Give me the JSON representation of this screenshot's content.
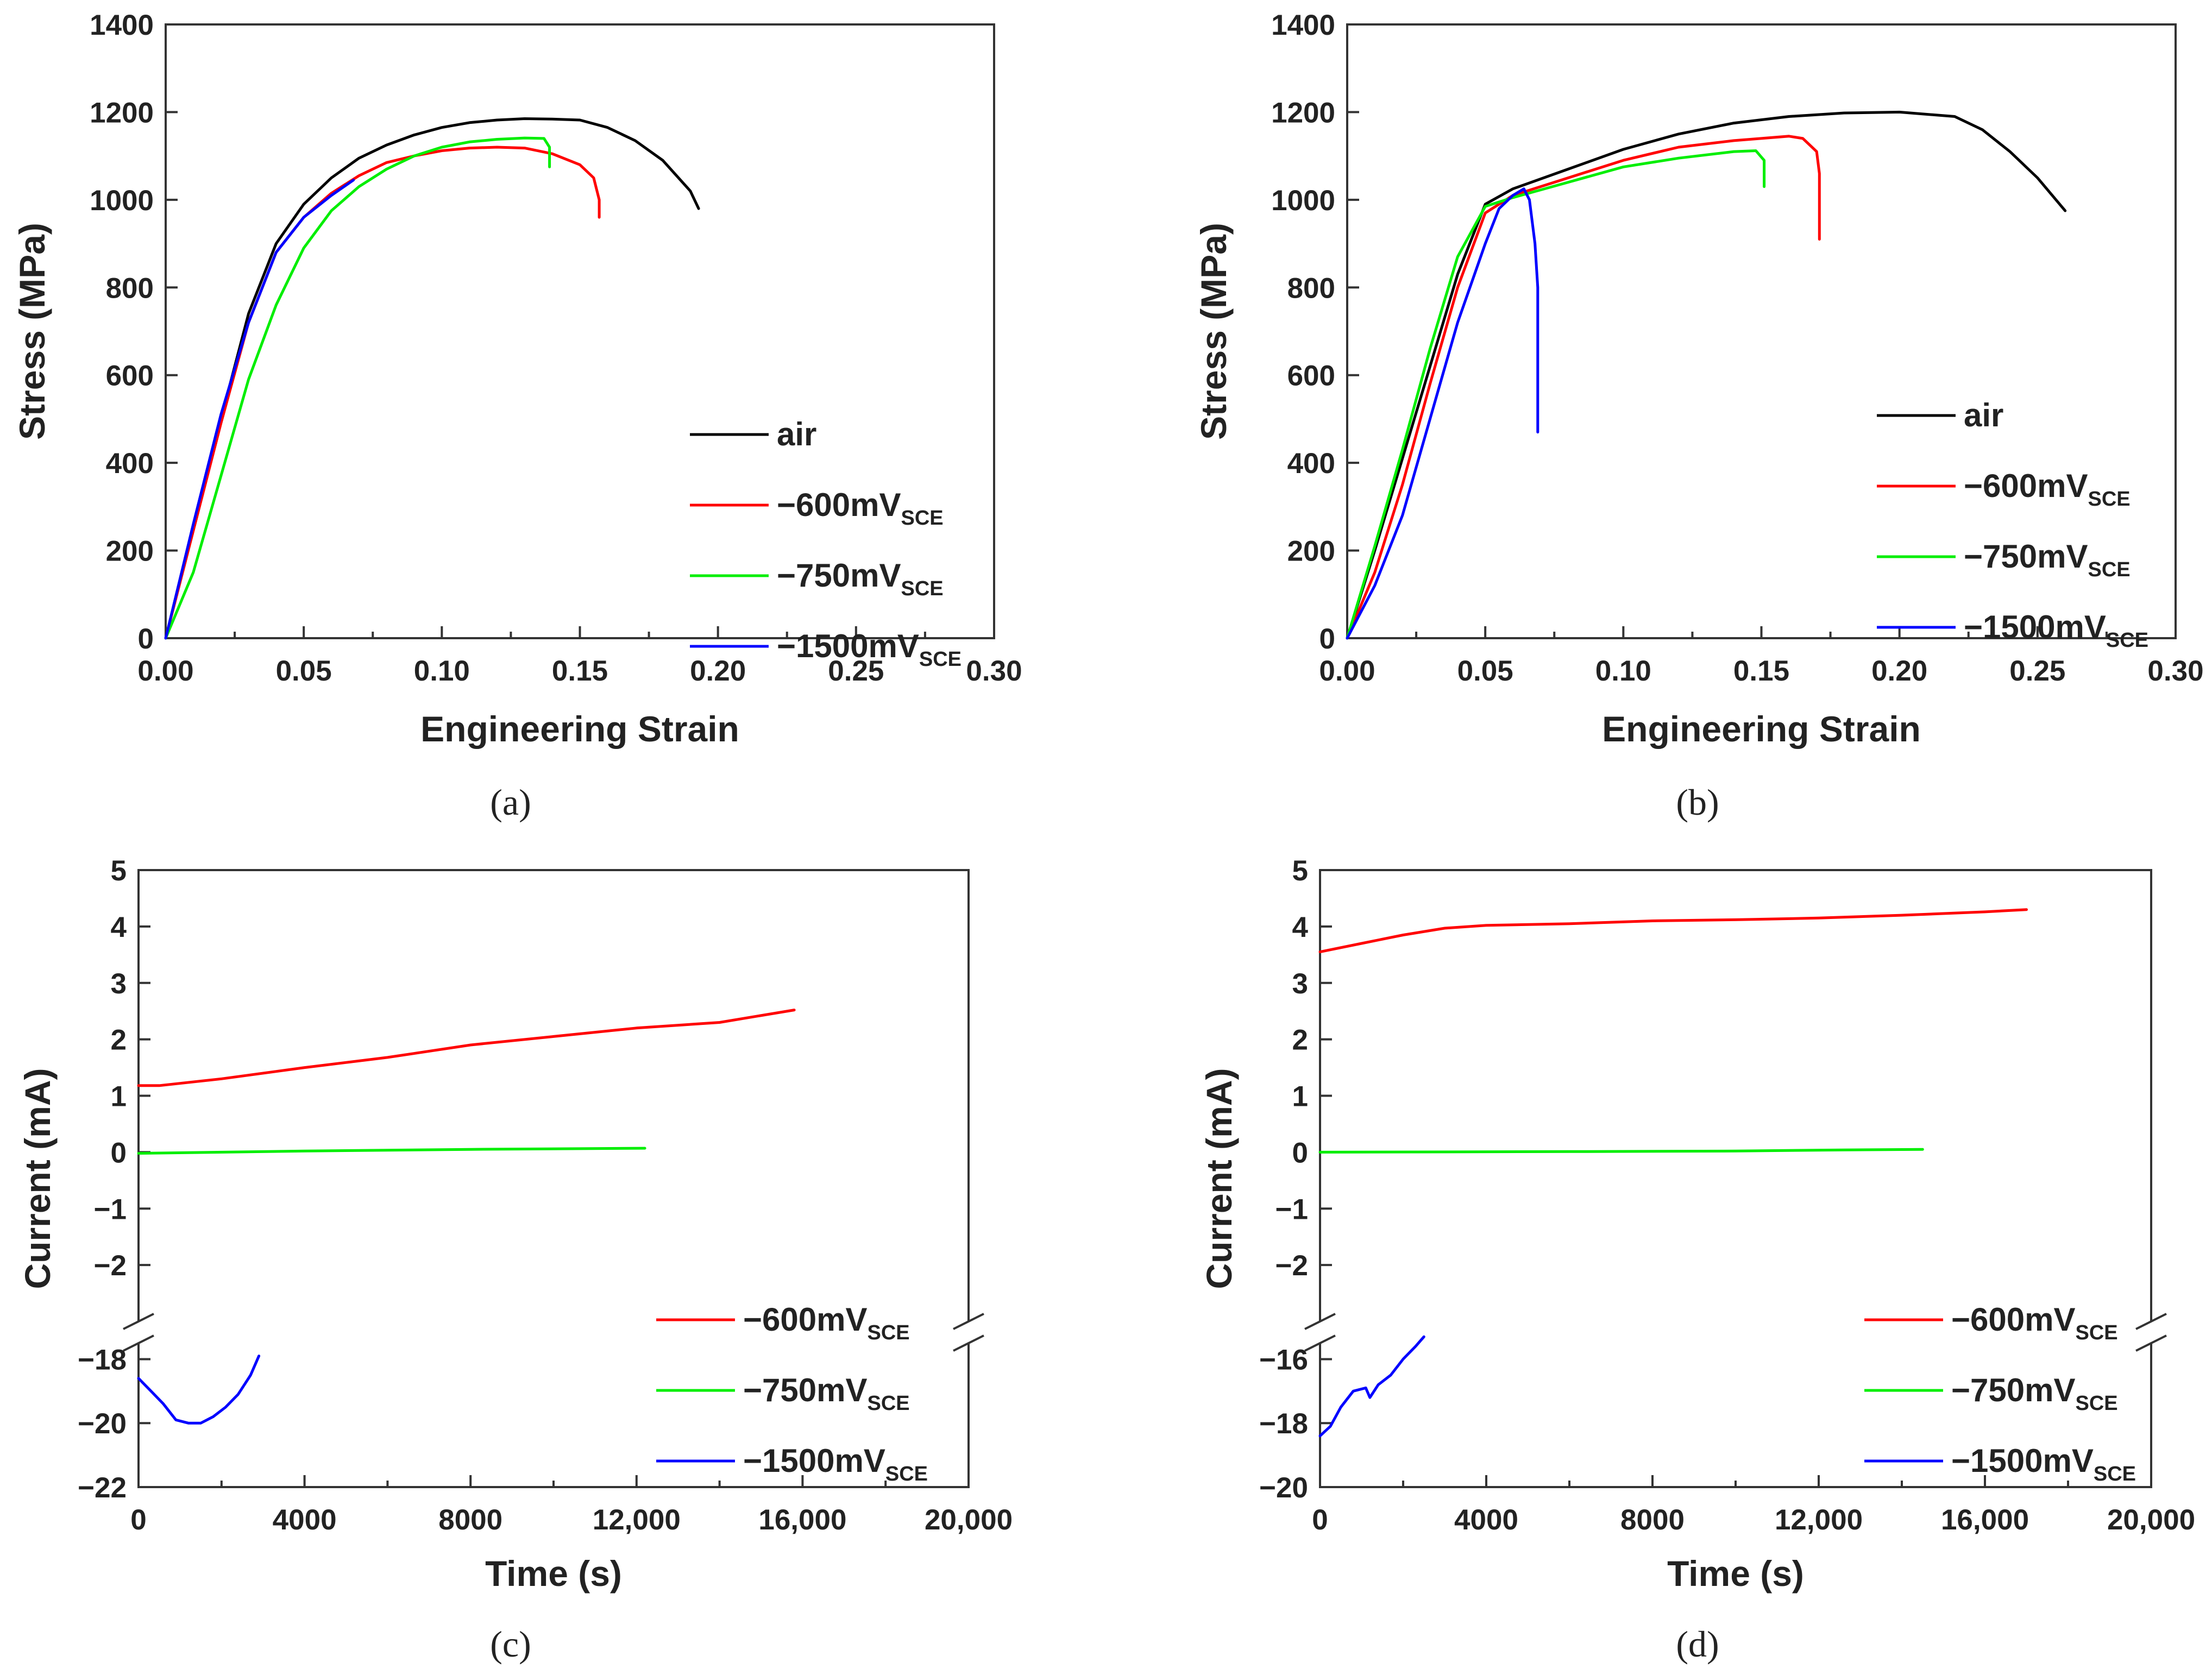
{
  "chart_data": [
    {
      "id": "a",
      "type": "line",
      "panel_label": "(a)",
      "xlabel": "Engineering Strain",
      "ylabel": "Stress (MPa)",
      "xlim": [
        0,
        0.3
      ],
      "ylim": [
        0,
        1400
      ],
      "x_ticks": [
        0.0,
        0.05,
        0.1,
        0.15,
        0.2,
        0.25,
        0.3
      ],
      "x_tick_labels": [
        "0.00",
        "0.05",
        "0.10",
        "0.15",
        "0.20",
        "0.25",
        "0.30"
      ],
      "y_ticks": [
        0,
        200,
        400,
        600,
        800,
        1000,
        1200,
        1400
      ],
      "y_tick_labels": [
        "0",
        "200",
        "400",
        "600",
        "800",
        "1000",
        "1200",
        "1400"
      ],
      "legend": {
        "position": "lower-right",
        "entries": [
          {
            "main": "air",
            "sub": ""
          },
          {
            "main": "−600mV",
            "sub": "SCE"
          },
          {
            "main": "−750mV",
            "sub": "SCE"
          },
          {
            "main": "−1500mV",
            "sub": "SCE"
          }
        ]
      },
      "series": [
        {
          "name": "air",
          "color": "#000000",
          "points": [
            [
              0,
              0
            ],
            [
              0.01,
              250
            ],
            [
              0.02,
              500
            ],
            [
              0.03,
              740
            ],
            [
              0.04,
              900
            ],
            [
              0.05,
              990
            ],
            [
              0.06,
              1050
            ],
            [
              0.07,
              1095
            ],
            [
              0.08,
              1125
            ],
            [
              0.09,
              1148
            ],
            [
              0.1,
              1165
            ],
            [
              0.11,
              1176
            ],
            [
              0.12,
              1182
            ],
            [
              0.13,
              1185
            ],
            [
              0.14,
              1184
            ],
            [
              0.15,
              1182
            ],
            [
              0.16,
              1165
            ],
            [
              0.17,
              1135
            ],
            [
              0.18,
              1090
            ],
            [
              0.19,
              1020
            ],
            [
              0.193,
              980
            ]
          ]
        },
        {
          "name": "−600mV SCE",
          "color": "#ff0000",
          "points": [
            [
              0,
              0
            ],
            [
              0.01,
              245
            ],
            [
              0.02,
              490
            ],
            [
              0.03,
              720
            ],
            [
              0.04,
              880
            ],
            [
              0.05,
              960
            ],
            [
              0.06,
              1015
            ],
            [
              0.07,
              1055
            ],
            [
              0.08,
              1085
            ],
            [
              0.09,
              1100
            ],
            [
              0.1,
              1112
            ],
            [
              0.11,
              1118
            ],
            [
              0.12,
              1120
            ],
            [
              0.13,
              1118
            ],
            [
              0.14,
              1105
            ],
            [
              0.15,
              1080
            ],
            [
              0.155,
              1050
            ],
            [
              0.157,
              1000
            ],
            [
              0.157,
              960
            ]
          ]
        },
        {
          "name": "−750mV SCE",
          "color": "#00ee00",
          "points": [
            [
              0,
              0
            ],
            [
              0.01,
              150
            ],
            [
              0.02,
              370
            ],
            [
              0.03,
              590
            ],
            [
              0.04,
              760
            ],
            [
              0.05,
              890
            ],
            [
              0.06,
              975
            ],
            [
              0.07,
              1030
            ],
            [
              0.08,
              1070
            ],
            [
              0.09,
              1100
            ],
            [
              0.1,
              1120
            ],
            [
              0.11,
              1132
            ],
            [
              0.12,
              1138
            ],
            [
              0.13,
              1141
            ],
            [
              0.137,
              1140
            ],
            [
              0.139,
              1120
            ],
            [
              0.139,
              1075
            ]
          ]
        },
        {
          "name": "−1500mV SCE",
          "color": "#0000ff",
          "points": [
            [
              0,
              0
            ],
            [
              0.01,
              260
            ],
            [
              0.02,
              510
            ],
            [
              0.03,
              720
            ],
            [
              0.04,
              880
            ],
            [
              0.05,
              960
            ],
            [
              0.06,
              1010
            ],
            [
              0.068,
              1045
            ]
          ]
        }
      ]
    },
    {
      "id": "b",
      "type": "line",
      "panel_label": "(b)",
      "xlabel": "Engineering Strain",
      "ylabel": "Stress (MPa)",
      "xlim": [
        0,
        0.3
      ],
      "ylim": [
        0,
        1400
      ],
      "x_ticks": [
        0.0,
        0.05,
        0.1,
        0.15,
        0.2,
        0.25,
        0.3
      ],
      "x_tick_labels": [
        "0.00",
        "0.05",
        "0.10",
        "0.15",
        "0.20",
        "0.25",
        "0.30"
      ],
      "y_ticks": [
        0,
        200,
        400,
        600,
        800,
        1000,
        1200,
        1400
      ],
      "y_tick_labels": [
        "0",
        "200",
        "400",
        "600",
        "800",
        "1000",
        "1200",
        "1400"
      ],
      "legend": {
        "position": "lower-right",
        "entries": [
          {
            "main": "air",
            "sub": ""
          },
          {
            "main": "−600mV",
            "sub": "SCE"
          },
          {
            "main": "−750mV",
            "sub": "SCE"
          },
          {
            "main": "−1500mV",
            "sub": "SCE"
          }
        ]
      },
      "series": [
        {
          "name": "air",
          "color": "#000000",
          "points": [
            [
              0,
              0
            ],
            [
              0.01,
              200
            ],
            [
              0.02,
              410
            ],
            [
              0.03,
              620
            ],
            [
              0.04,
              830
            ],
            [
              0.05,
              990
            ],
            [
              0.06,
              1025
            ],
            [
              0.08,
              1070
            ],
            [
              0.1,
              1115
            ],
            [
              0.12,
              1150
            ],
            [
              0.14,
              1175
            ],
            [
              0.16,
              1190
            ],
            [
              0.18,
              1198
            ],
            [
              0.2,
              1200
            ],
            [
              0.22,
              1190
            ],
            [
              0.23,
              1160
            ],
            [
              0.24,
              1110
            ],
            [
              0.25,
              1050
            ],
            [
              0.26,
              975
            ]
          ]
        },
        {
          "name": "−600mV SCE",
          "color": "#ff0000",
          "points": [
            [
              0,
              0
            ],
            [
              0.01,
              150
            ],
            [
              0.02,
              350
            ],
            [
              0.03,
              580
            ],
            [
              0.04,
              800
            ],
            [
              0.05,
              970
            ],
            [
              0.06,
              1010
            ],
            [
              0.08,
              1050
            ],
            [
              0.1,
              1090
            ],
            [
              0.12,
              1120
            ],
            [
              0.14,
              1135
            ],
            [
              0.16,
              1145
            ],
            [
              0.165,
              1140
            ],
            [
              0.17,
              1110
            ],
            [
              0.171,
              1060
            ],
            [
              0.171,
              910
            ]
          ]
        },
        {
          "name": "−750mV SCE",
          "color": "#00ee00",
          "points": [
            [
              0,
              0
            ],
            [
              0.01,
              210
            ],
            [
              0.02,
              430
            ],
            [
              0.03,
              660
            ],
            [
              0.04,
              870
            ],
            [
              0.05,
              985
            ],
            [
              0.06,
              1005
            ],
            [
              0.08,
              1040
            ],
            [
              0.1,
              1075
            ],
            [
              0.12,
              1095
            ],
            [
              0.14,
              1110
            ],
            [
              0.148,
              1112
            ],
            [
              0.151,
              1090
            ],
            [
              0.151,
              1030
            ]
          ]
        },
        {
          "name": "−1500mV SCE",
          "color": "#0000ff",
          "points": [
            [
              0,
              0
            ],
            [
              0.01,
              120
            ],
            [
              0.02,
              280
            ],
            [
              0.03,
              500
            ],
            [
              0.04,
              720
            ],
            [
              0.05,
              900
            ],
            [
              0.055,
              980
            ],
            [
              0.06,
              1010
            ],
            [
              0.064,
              1025
            ],
            [
              0.066,
              1000
            ],
            [
              0.068,
              900
            ],
            [
              0.069,
              800
            ],
            [
              0.069,
              470
            ]
          ]
        }
      ]
    },
    {
      "id": "c",
      "type": "line",
      "panel_label": "(c)",
      "xlabel": "Time (s)",
      "ylabel": "Current (mA)",
      "xlim": [
        0,
        20000
      ],
      "x_ticks": [
        0,
        4000,
        8000,
        12000,
        16000,
        20000
      ],
      "x_tick_labels": [
        "0",
        "4000",
        "8000",
        "12,000",
        "16,000",
        "20,000"
      ],
      "y_upper": {
        "ylim": [
          -3,
          5
        ],
        "ticks": [
          -2,
          -1,
          0,
          1,
          2,
          3,
          4,
          5
        ],
        "tick_labels": [
          "−2",
          "−1",
          "0",
          "1",
          "2",
          "3",
          "4",
          "5"
        ]
      },
      "y_lower": {
        "ylim": [
          -22,
          -17.5
        ],
        "ticks": [
          -22,
          -20,
          -18
        ],
        "tick_labels": [
          "−22",
          "−20",
          "−18"
        ]
      },
      "legend": {
        "position": "lower-right",
        "entries": [
          {
            "main": "−600mV",
            "sub": "SCE"
          },
          {
            "main": "−750mV",
            "sub": "SCE"
          },
          {
            "main": "−1500mV",
            "sub": "SCE"
          }
        ]
      },
      "series": [
        {
          "name": "−600mV SCE",
          "color": "#ff0000",
          "segment": "upper",
          "points": [
            [
              0,
              1.18
            ],
            [
              500,
              1.18
            ],
            [
              2000,
              1.3
            ],
            [
              4000,
              1.5
            ],
            [
              6000,
              1.68
            ],
            [
              8000,
              1.9
            ],
            [
              10000,
              2.05
            ],
            [
              12000,
              2.2
            ],
            [
              14000,
              2.3
            ],
            [
              15800,
              2.52
            ]
          ]
        },
        {
          "name": "−750mV SCE",
          "color": "#00ee00",
          "segment": "upper",
          "points": [
            [
              0,
              -0.02
            ],
            [
              4000,
              0.02
            ],
            [
              8000,
              0.05
            ],
            [
              12200,
              0.07
            ]
          ]
        },
        {
          "name": "−1500mV SCE",
          "color": "#0000ff",
          "segment": "lower",
          "points": [
            [
              0,
              -18.6
            ],
            [
              300,
              -19.0
            ],
            [
              600,
              -19.4
            ],
            [
              900,
              -19.9
            ],
            [
              1200,
              -20.0
            ],
            [
              1500,
              -20.0
            ],
            [
              1800,
              -19.8
            ],
            [
              2100,
              -19.5
            ],
            [
              2400,
              -19.1
            ],
            [
              2700,
              -18.5
            ],
            [
              2900,
              -17.9
            ]
          ]
        }
      ]
    },
    {
      "id": "d",
      "type": "line",
      "panel_label": "(d)",
      "xlabel": "Time (s)",
      "ylabel": "Current (mA)",
      "xlim": [
        0,
        20000
      ],
      "x_ticks": [
        0,
        4000,
        8000,
        12000,
        16000,
        20000
      ],
      "x_tick_labels": [
        "0",
        "4000",
        "8000",
        "12,000",
        "16,000",
        "20,000"
      ],
      "y_upper": {
        "ylim": [
          -3,
          5
        ],
        "ticks": [
          -2,
          -1,
          0,
          1,
          2,
          3,
          4,
          5
        ],
        "tick_labels": [
          "−2",
          "−1",
          "0",
          "1",
          "2",
          "3",
          "4",
          "5"
        ]
      },
      "y_lower": {
        "ylim": [
          -20,
          -15.5
        ],
        "ticks": [
          -20,
          -18,
          -16
        ],
        "tick_labels": [
          "−20",
          "−18",
          "−16"
        ]
      },
      "legend": {
        "position": "lower-right",
        "entries": [
          {
            "main": "−600mV",
            "sub": "SCE"
          },
          {
            "main": "−750mV",
            "sub": "SCE"
          },
          {
            "main": "−1500mV",
            "sub": "SCE"
          }
        ]
      },
      "series": [
        {
          "name": "−600mV SCE",
          "color": "#ff0000",
          "segment": "upper",
          "points": [
            [
              0,
              3.55
            ],
            [
              1000,
              3.7
            ],
            [
              2000,
              3.85
            ],
            [
              3000,
              3.97
            ],
            [
              4000,
              4.02
            ],
            [
              6000,
              4.05
            ],
            [
              8000,
              4.1
            ],
            [
              10000,
              4.12
            ],
            [
              12000,
              4.15
            ],
            [
              14000,
              4.2
            ],
            [
              16000,
              4.26
            ],
            [
              17000,
              4.3
            ]
          ]
        },
        {
          "name": "−750mV SCE",
          "color": "#00ee00",
          "segment": "upper",
          "points": [
            [
              0,
              0
            ],
            [
              6000,
              0.01
            ],
            [
              10000,
              0.02
            ],
            [
              12600,
              0.04
            ],
            [
              14500,
              0.05
            ]
          ]
        },
        {
          "name": "−1500mV SCE",
          "color": "#0000ff",
          "segment": "lower",
          "points": [
            [
              0,
              -18.4
            ],
            [
              250,
              -18.1
            ],
            [
              500,
              -17.5
            ],
            [
              800,
              -17.0
            ],
            [
              1100,
              -16.9
            ],
            [
              1200,
              -17.2
            ],
            [
              1400,
              -16.8
            ],
            [
              1700,
              -16.5
            ],
            [
              2000,
              -16.0
            ],
            [
              2300,
              -15.6
            ],
            [
              2500,
              -15.3
            ]
          ]
        }
      ]
    }
  ]
}
